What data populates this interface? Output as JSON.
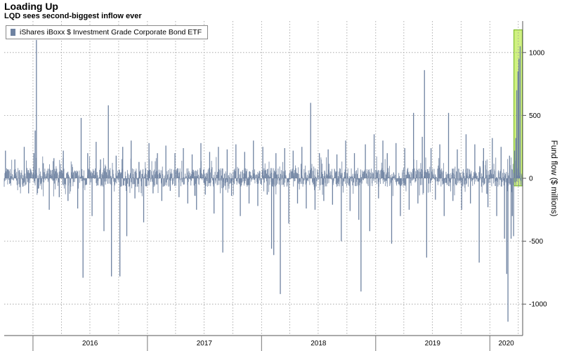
{
  "chart_data": {
    "type": "bar",
    "title": "Loading Up",
    "subtitle": "LQD sees second-biggest inflow ever",
    "ylabel": "Fund flow ($ millions)",
    "xlabel": "",
    "ylim": [
      -1250,
      1250
    ],
    "yticks": [
      -1000,
      -500,
      0,
      500,
      1000
    ],
    "x_range": [
      "2015-10-01",
      "2020-04-15"
    ],
    "year_labels": [
      {
        "label": "2016",
        "start": "2016-01-01",
        "end": "2016-12-31"
      },
      {
        "label": "2017",
        "start": "2017-01-01",
        "end": "2017-12-31"
      },
      {
        "label": "2018",
        "start": "2018-01-01",
        "end": "2018-12-31"
      },
      {
        "label": "2019",
        "start": "2019-01-01",
        "end": "2019-12-31"
      },
      {
        "label": "2020",
        "start": "2020-01-01",
        "end": "2020-04-15"
      }
    ],
    "grid": true,
    "legend_position": "top-left",
    "series": [
      {
        "name": "iShares iBoxx $ Investment Grade Corporate Bond ETF",
        "color": "#6e82a1",
        "points": [
          {
            "x": "2015-10-05",
            "y": 220
          },
          {
            "x": "2015-10-20",
            "y": -40
          },
          {
            "x": "2015-11-04",
            "y": 150
          },
          {
            "x": "2015-11-20",
            "y": -70
          },
          {
            "x": "2015-12-04",
            "y": 250
          },
          {
            "x": "2015-12-18",
            "y": -120
          },
          {
            "x": "2016-01-04",
            "y": 200
          },
          {
            "x": "2016-01-08",
            "y": 380
          },
          {
            "x": "2016-01-12",
            "y": 1100
          },
          {
            "x": "2016-01-19",
            "y": -80
          },
          {
            "x": "2016-02-03",
            "y": 120
          },
          {
            "x": "2016-02-22",
            "y": -250
          },
          {
            "x": "2016-03-08",
            "y": 160
          },
          {
            "x": "2016-03-25",
            "y": -150
          },
          {
            "x": "2016-04-07",
            "y": 220
          },
          {
            "x": "2016-04-22",
            "y": -180
          },
          {
            "x": "2016-05-06",
            "y": 90
          },
          {
            "x": "2016-05-23",
            "y": -240
          },
          {
            "x": "2016-06-03",
            "y": 480
          },
          {
            "x": "2016-06-09",
            "y": -790
          },
          {
            "x": "2016-06-24",
            "y": 200
          },
          {
            "x": "2016-07-08",
            "y": -300
          },
          {
            "x": "2016-07-21",
            "y": 290
          },
          {
            "x": "2016-08-04",
            "y": 150
          },
          {
            "x": "2016-08-15",
            "y": -420
          },
          {
            "x": "2016-08-29",
            "y": 580
          },
          {
            "x": "2016-09-08",
            "y": -780
          },
          {
            "x": "2016-09-23",
            "y": 180
          },
          {
            "x": "2016-10-05",
            "y": -780
          },
          {
            "x": "2016-10-14",
            "y": 250
          },
          {
            "x": "2016-10-27",
            "y": -460
          },
          {
            "x": "2016-11-10",
            "y": 300
          },
          {
            "x": "2016-11-22",
            "y": -160
          },
          {
            "x": "2016-12-05",
            "y": 130
          },
          {
            "x": "2016-12-20",
            "y": -350
          },
          {
            "x": "2017-01-06",
            "y": 280
          },
          {
            "x": "2017-01-19",
            "y": -120
          },
          {
            "x": "2017-02-02",
            "y": 200
          },
          {
            "x": "2017-02-16",
            "y": -180
          },
          {
            "x": "2017-03-01",
            "y": 260
          },
          {
            "x": "2017-03-15",
            "y": -100
          },
          {
            "x": "2017-03-30",
            "y": 200
          },
          {
            "x": "2017-04-12",
            "y": -150
          },
          {
            "x": "2017-04-26",
            "y": 240
          },
          {
            "x": "2017-05-10",
            "y": -200
          },
          {
            "x": "2017-05-24",
            "y": 190
          },
          {
            "x": "2017-06-07",
            "y": -250
          },
          {
            "x": "2017-06-21",
            "y": 280
          },
          {
            "x": "2017-07-05",
            "y": -130
          },
          {
            "x": "2017-07-19",
            "y": 210
          },
          {
            "x": "2017-08-02",
            "y": -280
          },
          {
            "x": "2017-08-16",
            "y": 250
          },
          {
            "x": "2017-08-30",
            "y": -590
          },
          {
            "x": "2017-09-13",
            "y": 230
          },
          {
            "x": "2017-09-27",
            "y": -140
          },
          {
            "x": "2017-10-11",
            "y": 270
          },
          {
            "x": "2017-10-25",
            "y": -300
          },
          {
            "x": "2017-11-08",
            "y": 210
          },
          {
            "x": "2017-11-22",
            "y": -200
          },
          {
            "x": "2017-12-06",
            "y": 300
          },
          {
            "x": "2017-12-20",
            "y": -220
          },
          {
            "x": "2018-01-05",
            "y": 250
          },
          {
            "x": "2018-01-19",
            "y": -130
          },
          {
            "x": "2018-02-02",
            "y": -560
          },
          {
            "x": "2018-02-09",
            "y": -610
          },
          {
            "x": "2018-02-16",
            "y": 200
          },
          {
            "x": "2018-03-02",
            "y": -920
          },
          {
            "x": "2018-03-16",
            "y": 240
          },
          {
            "x": "2018-03-29",
            "y": -360
          },
          {
            "x": "2018-04-12",
            "y": 220
          },
          {
            "x": "2018-04-26",
            "y": -200
          },
          {
            "x": "2018-05-10",
            "y": 250
          },
          {
            "x": "2018-05-24",
            "y": -240
          },
          {
            "x": "2018-06-07",
            "y": 600
          },
          {
            "x": "2018-06-21",
            "y": -250
          },
          {
            "x": "2018-07-05",
            "y": 200
          },
          {
            "x": "2018-07-19",
            "y": -180
          },
          {
            "x": "2018-08-02",
            "y": 230
          },
          {
            "x": "2018-08-16",
            "y": -210
          },
          {
            "x": "2018-08-30",
            "y": 190
          },
          {
            "x": "2018-09-13",
            "y": -500
          },
          {
            "x": "2018-09-27",
            "y": 300
          },
          {
            "x": "2018-10-11",
            "y": -260
          },
          {
            "x": "2018-10-25",
            "y": 200
          },
          {
            "x": "2018-11-08",
            "y": -330
          },
          {
            "x": "2018-11-15",
            "y": -900
          },
          {
            "x": "2018-11-29",
            "y": 270
          },
          {
            "x": "2018-12-13",
            "y": -420
          },
          {
            "x": "2018-12-27",
            "y": 350
          },
          {
            "x": "2019-01-10",
            "y": -160
          },
          {
            "x": "2019-01-24",
            "y": 300
          },
          {
            "x": "2019-02-07",
            "y": 200
          },
          {
            "x": "2019-02-21",
            "y": -520
          },
          {
            "x": "2019-03-07",
            "y": 280
          },
          {
            "x": "2019-03-21",
            "y": -300
          },
          {
            "x": "2019-04-04",
            "y": 240
          },
          {
            "x": "2019-04-18",
            "y": -250
          },
          {
            "x": "2019-05-02",
            "y": 520
          },
          {
            "x": "2019-05-16",
            "y": -200
          },
          {
            "x": "2019-05-30",
            "y": 330
          },
          {
            "x": "2019-06-06",
            "y": 860
          },
          {
            "x": "2019-06-13",
            "y": -630
          },
          {
            "x": "2019-06-27",
            "y": 240
          },
          {
            "x": "2019-07-11",
            "y": -170
          },
          {
            "x": "2019-07-25",
            "y": 270
          },
          {
            "x": "2019-08-08",
            "y": -300
          },
          {
            "x": "2019-08-22",
            "y": 520
          },
          {
            "x": "2019-09-05",
            "y": -180
          },
          {
            "x": "2019-09-19",
            "y": 230
          },
          {
            "x": "2019-10-03",
            "y": -250
          },
          {
            "x": "2019-10-17",
            "y": 350
          },
          {
            "x": "2019-10-31",
            "y": -200
          },
          {
            "x": "2019-11-14",
            "y": 270
          },
          {
            "x": "2019-11-28",
            "y": -670
          },
          {
            "x": "2019-12-12",
            "y": 240
          },
          {
            "x": "2019-12-26",
            "y": -230
          },
          {
            "x": "2020-01-09",
            "y": 320
          },
          {
            "x": "2020-01-23",
            "y": -300
          },
          {
            "x": "2020-02-06",
            "y": 250
          },
          {
            "x": "2020-02-17",
            "y": -480
          },
          {
            "x": "2020-02-24",
            "y": -760
          },
          {
            "x": "2020-02-28",
            "y": -1140
          },
          {
            "x": "2020-03-04",
            "y": 180
          },
          {
            "x": "2020-03-09",
            "y": -480
          },
          {
            "x": "2020-03-13",
            "y": -300
          },
          {
            "x": "2020-03-17",
            "y": -460
          },
          {
            "x": "2020-03-20",
            "y": 220
          },
          {
            "x": "2020-03-24",
            "y": 320
          },
          {
            "x": "2020-03-27",
            "y": 700
          },
          {
            "x": "2020-03-31",
            "y": 850
          },
          {
            "x": "2020-04-03",
            "y": 950
          },
          {
            "x": "2020-04-07",
            "y": 1050
          }
        ]
      }
    ],
    "annotations": [
      {
        "type": "highlight-box",
        "color": "#c8ee6c",
        "border_color": "#7fbf28",
        "x_start": "2020-03-18",
        "x_end": "2020-04-14",
        "y_start": -60,
        "y_end": 1180
      }
    ]
  }
}
